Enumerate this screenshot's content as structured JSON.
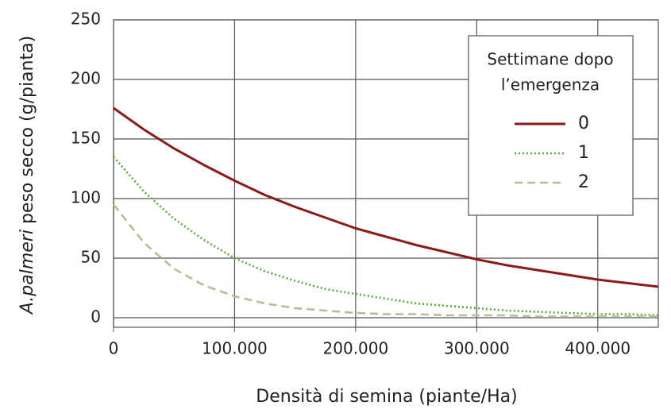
{
  "chart_data": {
    "type": "line",
    "x_label": "Densità di semina (piante/Ha)",
    "y_label_italic": "A.palmeri",
    "y_label": "peso secco (g/pianta)",
    "legend_title": [
      "Settimane dopo",
      "l’emergenza"
    ],
    "x": [
      0,
      25000,
      50000,
      75000,
      100000,
      125000,
      150000,
      175000,
      200000,
      225000,
      250000,
      275000,
      300000,
      325000,
      350000,
      375000,
      400000,
      425000,
      450000
    ],
    "series": [
      {
        "name": "0",
        "color": "#8b1a1a",
        "dash": "solid",
        "values": [
          176,
          158,
          142,
          128,
          115,
          103,
          93,
          84,
          75,
          68,
          61,
          55,
          49,
          44,
          40,
          36,
          32,
          29,
          26
        ]
      },
      {
        "name": "1",
        "color": "#5aa83c",
        "dash": "dotted",
        "values": [
          135,
          106,
          83,
          65,
          50,
          39,
          31,
          24,
          20,
          16,
          12,
          10,
          8,
          6,
          5,
          4,
          3,
          3,
          2
        ]
      },
      {
        "name": "2",
        "color": "#b5bf94",
        "dash": "dashed",
        "values": [
          95,
          63,
          41,
          27,
          18,
          12,
          8,
          6,
          4,
          3,
          3,
          2,
          2,
          2,
          1,
          1,
          1,
          1,
          1
        ]
      }
    ],
    "xlim": [
      0,
      450000
    ],
    "ylim": [
      -8,
      250
    ],
    "xticks": [
      0,
      {
        "value": 100000,
        "label": "100.000"
      },
      {
        "value": 200000,
        "label": "200.000"
      },
      {
        "value": 300000,
        "label": "300.000"
      },
      {
        "value": 400000,
        "label": "400.000"
      }
    ],
    "yticks": [
      0,
      50,
      100,
      150,
      200,
      250
    ],
    "grid": true
  }
}
